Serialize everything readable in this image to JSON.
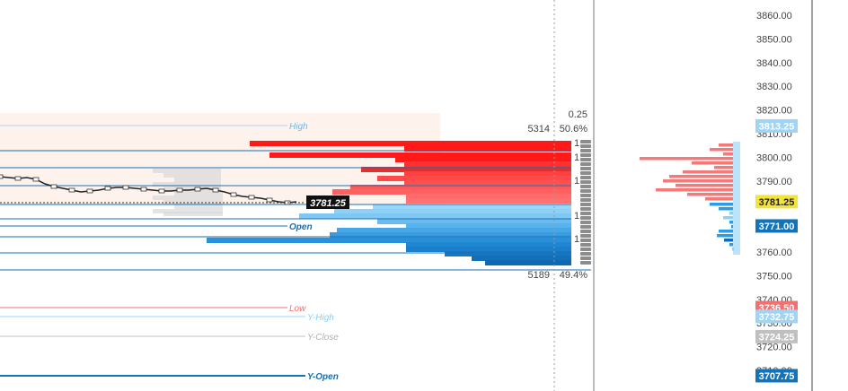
{
  "colors": {
    "ask": "#ff1a1a",
    "ask_light": "#f47a7a",
    "bid": "#2a9de6",
    "bid_dark": "#0a6fb8",
    "bid_light": "#8fd0f6",
    "gray": "#bdbdbd",
    "price_tag_bg": "#111111",
    "last_tag_bg": "#f4e33a",
    "open_tag_bg": "#1273b8",
    "low_tag_bg": "#f47070",
    "yhigh_tag_bg": "#9fd4f6",
    "yclose_tag_bg": "#c0c0c0",
    "yopen_tag_bg": "#1273b8",
    "high_tag_bg": "#9fd4f6"
  },
  "axis": {
    "ticks": [
      "3860.00",
      "3850.00",
      "3840.00",
      "3830.00",
      "3820.00",
      "3810.00",
      "3800.00",
      "3790.00",
      "3780.00",
      "3770.00",
      "3760.00",
      "3750.00",
      "3740.00",
      "3730.00",
      "3720.00",
      "3710.00"
    ]
  },
  "axis_tags": [
    {
      "text": "3813.25",
      "role": "high",
      "color_key": "high_tag_bg",
      "text_color": "#ffffff"
    },
    {
      "text": "3781.25",
      "role": "last",
      "color_key": "last_tag_bg",
      "text_color": "#222222"
    },
    {
      "text": "3771.00",
      "role": "open",
      "color_key": "open_tag_bg",
      "text_color": "#ffffff"
    },
    {
      "text": "3736.50",
      "role": "low",
      "color_key": "low_tag_bg",
      "text_color": "#ffffff"
    },
    {
      "text": "3732.75",
      "role": "y-high",
      "color_key": "yhigh_tag_bg",
      "text_color": "#ffffff"
    },
    {
      "text": "3724.25",
      "role": "y-close",
      "color_key": "yclose_tag_bg",
      "text_color": "#ffffff"
    },
    {
      "text": "3707.75",
      "role": "y-open",
      "color_key": "yopen_tag_bg",
      "text_color": "#ffffff"
    }
  ],
  "levels": {
    "high": "High",
    "open": "Open",
    "low": "Low",
    "y_high": "Y-High",
    "y_close": "Y-Close",
    "y_open": "Y-Open"
  },
  "price_label": "3781.25",
  "dom_stats": {
    "ask_ratio": "0.25",
    "ask_total": "5314",
    "ask_pct": "50.6%",
    "bid_total": "5189",
    "bid_pct": "49.4%"
  },
  "side_digits": [
    "1",
    "1",
    "1",
    "1",
    "1"
  ]
}
